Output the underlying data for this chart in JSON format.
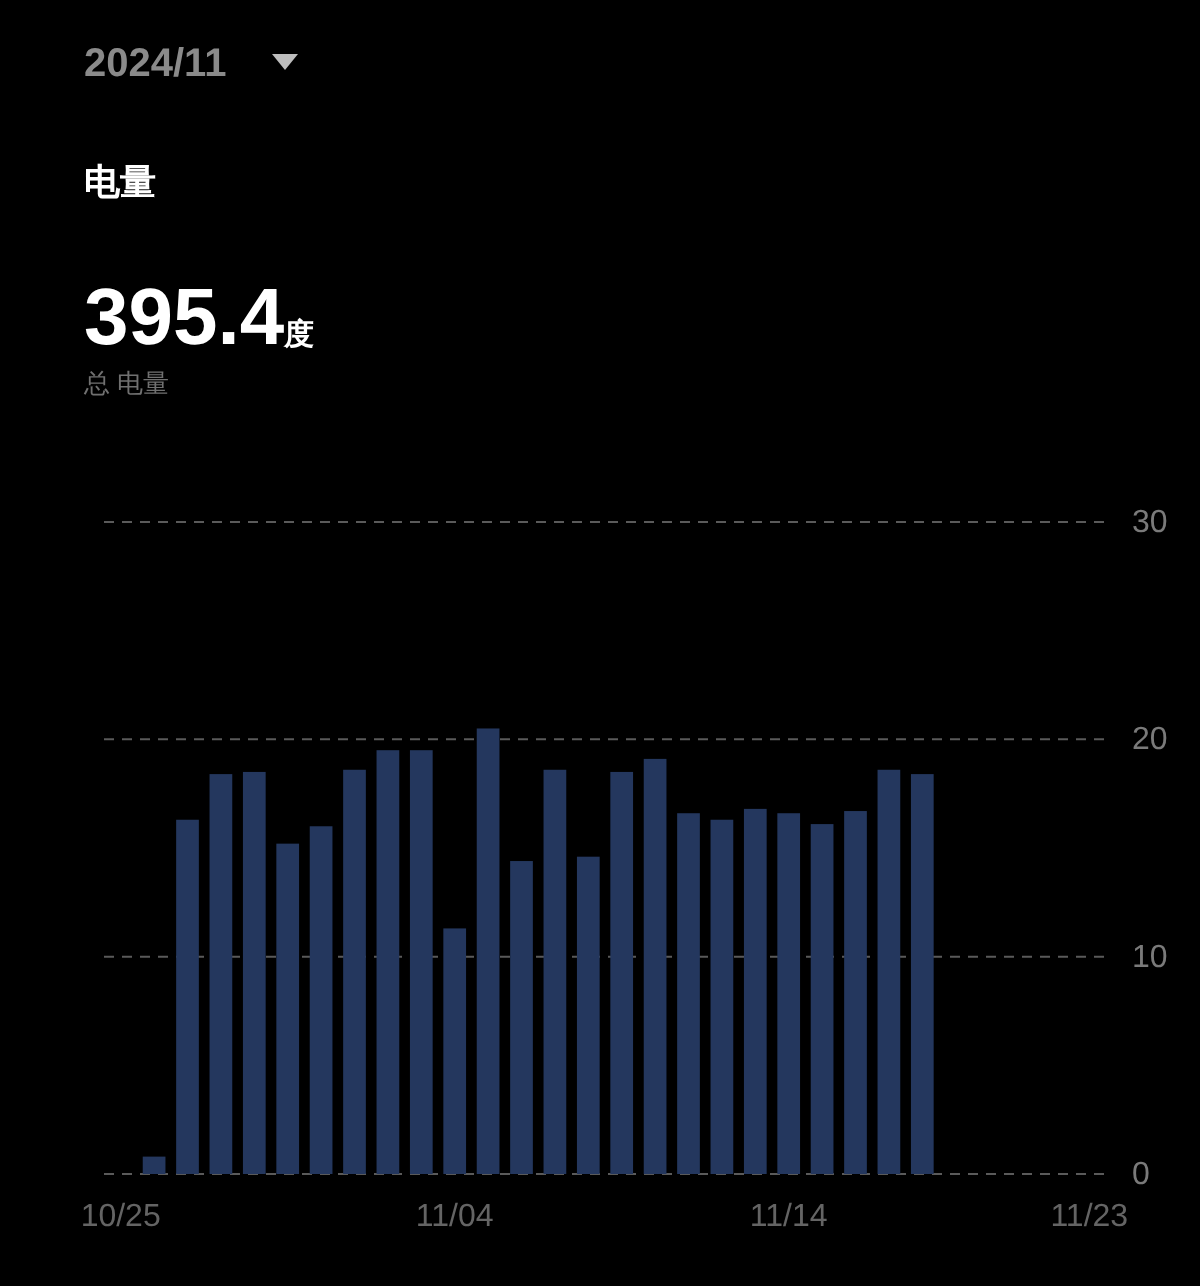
{
  "chart_data": {
    "type": "bar",
    "title": "电量",
    "annotations": [
      "2024/11",
      "395.4度",
      "总 电量"
    ],
    "categories": [
      "10/25",
      null,
      null,
      null,
      null,
      null,
      null,
      null,
      null,
      null,
      "11/04",
      null,
      null,
      null,
      null,
      null,
      null,
      null,
      null,
      null,
      "11/14",
      null,
      null,
      null,
      null,
      null,
      null,
      null,
      null,
      "11/23"
    ],
    "values": [
      null,
      0.8,
      16.3,
      18.4,
      18.5,
      15.2,
      16.0,
      18.6,
      19.5,
      19.5,
      11.3,
      20.5,
      14.4,
      18.6,
      14.6,
      18.5,
      19.1,
      16.6,
      16.3,
      16.8,
      16.6,
      16.1,
      16.7,
      18.6,
      18.4,
      null,
      null,
      null,
      null,
      null
    ],
    "color": "#24375e",
    "ylim": [
      0,
      30
    ],
    "yticks": [
      0,
      10,
      20,
      30
    ],
    "grid": "y"
  }
}
